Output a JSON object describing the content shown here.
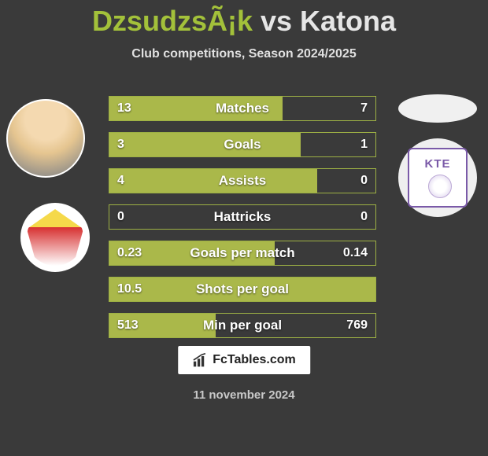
{
  "title": {
    "player1": "DzsudzsÃ¡k",
    "vs": "vs",
    "player2": "Katona"
  },
  "subtitle": "Club competitions, Season 2024/2025",
  "club2_label": "KTE",
  "footer_brand": "FcTables.com",
  "date": "11 november 2024",
  "colors": {
    "background": "#3a3a3a",
    "bar_fill": "#aab84a",
    "bar_border": "#9db044",
    "title_p1": "#a3c13a",
    "title_p2": "#e6e6e6",
    "text_light": "#ffffff",
    "club2_accent": "#7a5aa8"
  },
  "bars": [
    {
      "label": "Matches",
      "left": "13",
      "right": "7",
      "fill_pct": 65
    },
    {
      "label": "Goals",
      "left": "3",
      "right": "1",
      "fill_pct": 72
    },
    {
      "label": "Assists",
      "left": "4",
      "right": "0",
      "fill_pct": 78
    },
    {
      "label": "Hattricks",
      "left": "0",
      "right": "0",
      "fill_pct": 0
    },
    {
      "label": "Goals per match",
      "left": "0.23",
      "right": "0.14",
      "fill_pct": 62
    },
    {
      "label": "Shots per goal",
      "left": "10.5",
      "right": "",
      "fill_pct": 100
    },
    {
      "label": "Min per goal",
      "left": "513",
      "right": "769",
      "fill_pct": 40
    }
  ]
}
